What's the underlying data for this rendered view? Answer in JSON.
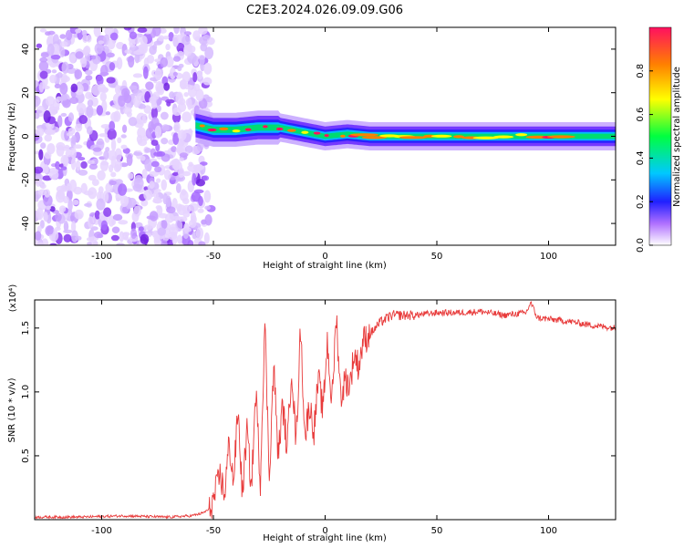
{
  "title": "C2E3.2024.026.09.09.G06",
  "chart_data": [
    {
      "type": "heatmap",
      "title": "C2E3.2024.026.09.09.G06",
      "xlabel": "Height of straight line (km)",
      "ylabel": "Frequency (Hz)",
      "xlim": [
        -130,
        130
      ],
      "ylim": [
        -50,
        50
      ],
      "x_ticks": [
        -100,
        -50,
        0,
        50,
        100
      ],
      "y_ticks": [
        -40,
        -20,
        0,
        20,
        40
      ],
      "colorbar": {
        "label": "Normalized spectral amplitude",
        "range": [
          0.0,
          1.0
        ],
        "ticks": [
          0.0,
          0.2,
          0.4,
          0.6,
          0.8
        ],
        "tick_labels": [
          "0.0",
          "0.2",
          "0.4",
          "0.6",
          "0.8"
        ]
      },
      "regions": [
        {
          "x_range": [
            -130,
            -55
          ],
          "description": "broadband noise, low amplitude",
          "amplitude": 0.1
        },
        {
          "x_range": [
            -55,
            130
          ],
          "description": "signal trace near 0 Hz",
          "amplitude_peak": 0.9
        }
      ],
      "trace": {
        "x": [
          -58,
          -50,
          -40,
          -30,
          -20,
          -10,
          0,
          10,
          20,
          40,
          60,
          80,
          100,
          130
        ],
        "freq": [
          5,
          3,
          3,
          4,
          4,
          2,
          0,
          1,
          0,
          0,
          0,
          0,
          0,
          0
        ]
      }
    },
    {
      "type": "line",
      "xlabel": "Height of straight line (km)",
      "ylabel": "SNR (10 * v/v)",
      "y_multiplier": "(x10⁴)",
      "xlim": [
        -130,
        130
      ],
      "ylim": [
        0,
        1.72
      ],
      "x_ticks": [
        -100,
        -50,
        0,
        50,
        100
      ],
      "y_ticks": [
        0.5,
        1.0,
        1.5
      ],
      "y_tick_labels": [
        "0.5",
        "1.0",
        "1.5"
      ],
      "color": "#e83a3a",
      "series": [
        {
          "x": [
            -130,
            -110,
            -90,
            -70,
            -60,
            -55,
            -52,
            -50,
            -47,
            -45,
            -43,
            -41,
            -39,
            -37,
            -35,
            -33,
            -31,
            -29,
            -27,
            -25,
            -23,
            -21,
            -19,
            -17,
            -15,
            -13,
            -11,
            -9,
            -7,
            -5,
            -3,
            -1,
            1,
            3,
            5,
            7,
            9,
            11,
            13,
            15,
            17,
            20,
            25,
            30,
            40,
            50,
            60,
            70,
            80,
            90,
            92,
            95,
            100,
            110,
            120,
            130
          ],
          "values": [
            0.02,
            0.02,
            0.03,
            0.02,
            0.03,
            0.05,
            0.08,
            0.15,
            0.35,
            0.2,
            0.6,
            0.3,
            0.85,
            0.2,
            0.7,
            0.25,
            1.0,
            0.3,
            1.55,
            0.35,
            1.2,
            0.5,
            0.9,
            0.55,
            1.2,
            0.6,
            1.5,
            0.65,
            0.9,
            0.7,
            1.1,
            0.85,
            1.4,
            0.9,
            1.6,
            0.95,
            1.1,
            1.05,
            1.3,
            1.2,
            1.4,
            1.45,
            1.55,
            1.6,
            1.6,
            1.62,
            1.62,
            1.63,
            1.6,
            1.62,
            1.7,
            1.58,
            1.57,
            1.55,
            1.52,
            1.5
          ]
        }
      ]
    }
  ]
}
